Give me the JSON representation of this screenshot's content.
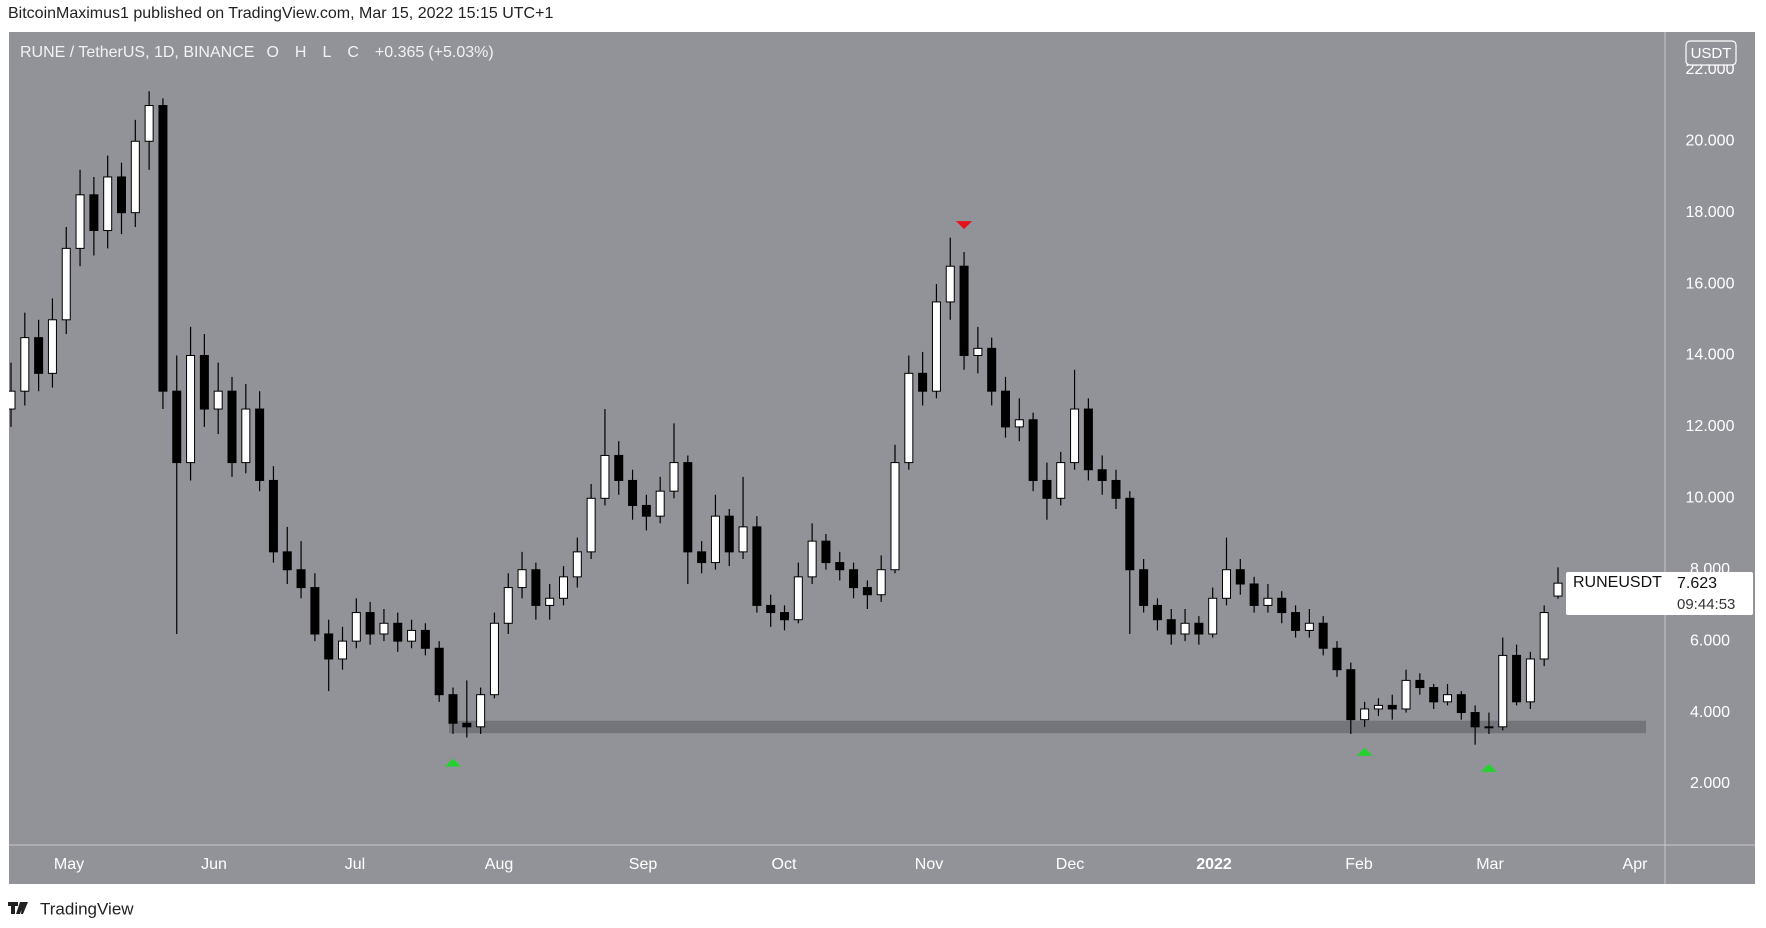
{
  "header": {
    "published": "BitcoinMaximus1 published on TradingView.com, Mar 15, 2022 15:15 UTC+1"
  },
  "chart_data": {
    "type": "candlestick",
    "symbol": "RUNE / TetherUS, 1D, BINANCE",
    "ohlc_labels": [
      "O",
      "H",
      "L",
      "C"
    ],
    "change": "+0.365",
    "change_pct": "(+5.03%)",
    "currency": "USDT",
    "ticker": "RUNEUSDT",
    "countdown": "09:44:53",
    "up_color": "#ffffff",
    "down_color": "#000000",
    "candles": [
      [
        12.5,
        13.8,
        12.0,
        13
      ],
      [
        13,
        15.2,
        12.6,
        14.5
      ],
      [
        14.5,
        15.0,
        13.0,
        13.5
      ],
      [
        13.5,
        15.6,
        13.1,
        15
      ],
      [
        15,
        17.6,
        14.6,
        17
      ],
      [
        17,
        19.2,
        16.5,
        18.5
      ],
      [
        18.5,
        19.0,
        16.8,
        17.5
      ],
      [
        17.5,
        19.6,
        17.0,
        19
      ],
      [
        19,
        19.4,
        17.4,
        18
      ],
      [
        18,
        20.6,
        17.6,
        20
      ],
      [
        20,
        21.4,
        19.2,
        21
      ],
      [
        21,
        21.2,
        12.5,
        13
      ],
      [
        13,
        14.0,
        6.2,
        11
      ],
      [
        11,
        14.8,
        10.5,
        14
      ],
      [
        14,
        14.6,
        12.0,
        12.5
      ],
      [
        12.5,
        13.8,
        11.8,
        13
      ],
      [
        13,
        13.4,
        10.6,
        11
      ],
      [
        11,
        13.2,
        10.7,
        12.5
      ],
      [
        12.5,
        13.0,
        10.2,
        10.5
      ],
      [
        10.5,
        10.9,
        8.2,
        8.5
      ],
      [
        8.5,
        9.2,
        7.6,
        8
      ],
      [
        8,
        8.8,
        7.2,
        7.5
      ],
      [
        7.5,
        7.9,
        6.0,
        6.2
      ],
      [
        6.2,
        6.6,
        4.6,
        5.5
      ],
      [
        5.5,
        6.4,
        5.2,
        6
      ],
      [
        6,
        7.2,
        5.8,
        6.8
      ],
      [
        6.8,
        7.1,
        5.9,
        6.2
      ],
      [
        6.2,
        6.9,
        6.0,
        6.5
      ],
      [
        6.5,
        6.8,
        5.7,
        6
      ],
      [
        6,
        6.6,
        5.8,
        6.3
      ],
      [
        6.3,
        6.5,
        5.6,
        5.8
      ],
      [
        5.8,
        6.0,
        4.3,
        4.5
      ],
      [
        4.5,
        4.7,
        3.4,
        3.7
      ],
      [
        3.7,
        4.9,
        3.3,
        3.6
      ],
      [
        3.6,
        4.7,
        3.4,
        4.5
      ],
      [
        4.5,
        6.8,
        4.4,
        6.5
      ],
      [
        6.5,
        7.9,
        6.2,
        7.5
      ],
      [
        7.5,
        8.5,
        7.2,
        8
      ],
      [
        8,
        8.2,
        6.6,
        7
      ],
      [
        7,
        7.6,
        6.6,
        7.2
      ],
      [
        7.2,
        8.1,
        7.0,
        7.8
      ],
      [
        7.8,
        8.9,
        7.5,
        8.5
      ],
      [
        8.5,
        10.4,
        8.3,
        10
      ],
      [
        10,
        12.5,
        9.8,
        11.2
      ],
      [
        11.2,
        11.6,
        10.1,
        10.5
      ],
      [
        10.5,
        10.8,
        9.4,
        9.8
      ],
      [
        9.8,
        10.1,
        9.1,
        9.5
      ],
      [
        9.5,
        10.6,
        9.3,
        10.2
      ],
      [
        10.2,
        12.1,
        10.0,
        11
      ],
      [
        11,
        11.2,
        7.6,
        8.5
      ],
      [
        8.5,
        8.8,
        7.9,
        8.2
      ],
      [
        8.2,
        10.1,
        8.0,
        9.5
      ],
      [
        9.5,
        9.7,
        8.1,
        8.5
      ],
      [
        8.5,
        10.6,
        8.3,
        9.2
      ],
      [
        9.2,
        9.5,
        6.8,
        7
      ],
      [
        7,
        7.3,
        6.4,
        6.8
      ],
      [
        6.8,
        7.0,
        6.3,
        6.6
      ],
      [
        6.6,
        8.2,
        6.5,
        7.8
      ],
      [
        7.8,
        9.3,
        7.6,
        8.8
      ],
      [
        8.8,
        9.0,
        8.0,
        8.2
      ],
      [
        8.2,
        8.5,
        7.7,
        8
      ],
      [
        8,
        8.2,
        7.2,
        7.5
      ],
      [
        7.5,
        7.7,
        6.9,
        7.3
      ],
      [
        7.3,
        8.4,
        7.1,
        8
      ],
      [
        8,
        11.5,
        7.9,
        11
      ],
      [
        11,
        14.0,
        10.8,
        13.5
      ],
      [
        13.5,
        14.1,
        12.6,
        13
      ],
      [
        13,
        16.0,
        12.8,
        15.5
      ],
      [
        15.5,
        17.3,
        15.0,
        16.5
      ],
      [
        16.5,
        16.9,
        13.6,
        14
      ],
      [
        14,
        14.8,
        13.5,
        14.2
      ],
      [
        14.2,
        14.5,
        12.6,
        13
      ],
      [
        13,
        13.4,
        11.7,
        12
      ],
      [
        12,
        12.8,
        11.6,
        12.2
      ],
      [
        12.2,
        12.4,
        10.2,
        10.5
      ],
      [
        10.5,
        11.0,
        9.4,
        10
      ],
      [
        10,
        11.3,
        9.8,
        11
      ],
      [
        11,
        13.6,
        10.8,
        12.5
      ],
      [
        12.5,
        12.8,
        10.5,
        10.8
      ],
      [
        10.8,
        11.2,
        10.1,
        10.5
      ],
      [
        10.5,
        10.8,
        9.7,
        10
      ],
      [
        10,
        10.2,
        6.2,
        8
      ],
      [
        8,
        8.3,
        6.8,
        7
      ],
      [
        7,
        7.2,
        6.3,
        6.6
      ],
      [
        6.6,
        6.9,
        5.9,
        6.2
      ],
      [
        6.2,
        6.9,
        6.0,
        6.5
      ],
      [
        6.5,
        6.7,
        5.9,
        6.2
      ],
      [
        6.2,
        7.5,
        6.1,
        7.2
      ],
      [
        7.2,
        8.9,
        7.0,
        8
      ],
      [
        8,
        8.3,
        7.3,
        7.6
      ],
      [
        7.6,
        7.8,
        6.8,
        7
      ],
      [
        7,
        7.6,
        6.8,
        7.2
      ],
      [
        7.2,
        7.4,
        6.5,
        6.8
      ],
      [
        6.8,
        7.0,
        6.1,
        6.3
      ],
      [
        6.3,
        6.9,
        6.1,
        6.5
      ],
      [
        6.5,
        6.7,
        5.6,
        5.8
      ],
      [
        5.8,
        6.0,
        5.0,
        5.2
      ],
      [
        5.2,
        5.4,
        3.4,
        3.8
      ],
      [
        3.8,
        4.3,
        3.6,
        4.1
      ],
      [
        4.1,
        4.4,
        3.9,
        4.2
      ],
      [
        4.2,
        4.5,
        3.8,
        4.1
      ],
      [
        4.1,
        5.2,
        4.0,
        4.9
      ],
      [
        4.9,
        5.1,
        4.5,
        4.7
      ],
      [
        4.7,
        4.8,
        4.1,
        4.3
      ],
      [
        4.3,
        4.8,
        4.2,
        4.5
      ],
      [
        4.5,
        4.6,
        3.8,
        4.0
      ],
      [
        4,
        4.2,
        3.1,
        3.6
      ],
      [
        3.6,
        4.0,
        3.4,
        3.6
      ],
      [
        3.6,
        6.1,
        3.5,
        5.6
      ],
      [
        5.6,
        5.9,
        4.2,
        4.3
      ],
      [
        4.3,
        5.7,
        4.1,
        5.5
      ],
      [
        5.5,
        7.0,
        5.3,
        6.8
      ],
      [
        7.262,
        8.067,
        7.186,
        7.623
      ]
    ],
    "ylim": [
      0.29,
      23.06
    ],
    "yticks": [
      {
        "value": 2,
        "label": "2.000"
      },
      {
        "value": 4,
        "label": "4.000"
      },
      {
        "value": 6,
        "label": "6.000"
      },
      {
        "value": 8,
        "label": "8.000"
      },
      {
        "value": 10,
        "label": "10.000"
      },
      {
        "value": 12,
        "label": "12.000"
      },
      {
        "value": 14,
        "label": "14.000"
      },
      {
        "value": 16,
        "label": "16.000"
      },
      {
        "value": 18,
        "label": "18.000"
      },
      {
        "value": 20,
        "label": "20.000"
      },
      {
        "value": 22,
        "label": "22.000"
      }
    ],
    "xtick_labels": [
      "May",
      "Jun",
      "Jul",
      "Aug",
      "Sep",
      "Oct",
      "Nov",
      "Dec",
      "2022",
      "Feb",
      "Mar",
      "Apr"
    ],
    "support_zone": {
      "range": [
        3.42,
        3.77
      ],
      "color": "#6f7076"
    },
    "markers": [
      {
        "value": 17.65,
        "shape": "down",
        "color": "#e3121b"
      },
      {
        "value": 2.6,
        "shape": "up",
        "color": "#22d32e"
      },
      {
        "value": 2.9,
        "shape": "up",
        "color": "#22d32e"
      },
      {
        "value": 2.45,
        "shape": "up",
        "color": "#22d32e"
      }
    ]
  },
  "footer": {
    "brand": "TradingView"
  }
}
